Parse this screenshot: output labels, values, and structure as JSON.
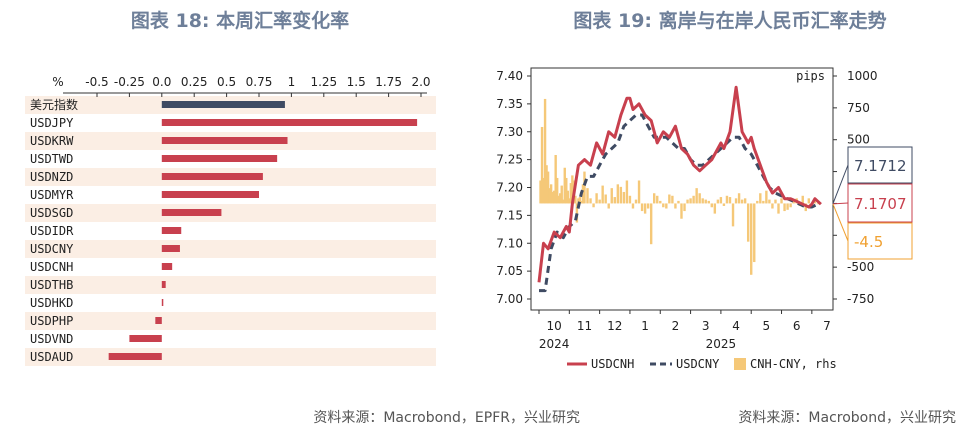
{
  "titles": {
    "left": "图表 18: 本周汇率变化率",
    "right": "图表 19: 离岸与在岸人民币汇率走势"
  },
  "sources": {
    "left": "资料来源：Macrobond，EPFR，兴业研究",
    "right": "资料来源：Macrobond，兴业研究"
  },
  "colors": {
    "bar_usd_index": "#3f4b63",
    "bar_red": "#c8404e",
    "row_shade": "#fbeee4",
    "cnh_line": "#c8404e",
    "cny_line": "#3f4b63",
    "spread_bar": "#f5c878",
    "box_blue": "#3f4b63",
    "box_red": "#c8404e",
    "box_orange": "#f0a030"
  },
  "chart_data": [
    {
      "type": "bar",
      "orientation": "horizontal",
      "unit_label": "%",
      "xlim": [
        -0.5,
        2.0
      ],
      "x_ticks": [
        "-0.5",
        "-0.25",
        "0.0",
        "0.25",
        "0.5",
        "0.75",
        "1",
        "1.25",
        "1.5",
        "1.75",
        "2.0"
      ],
      "categories": [
        "美元指数",
        "USDJPY",
        "USDKRW",
        "USDTWD",
        "USDNZD",
        "USDMYR",
        "USDSGD",
        "USDIDR",
        "USDCNY",
        "USDCNH",
        "USDTHB",
        "USDHKD",
        "USDPHP",
        "USDVND",
        "USDAUD"
      ],
      "values": [
        0.95,
        1.97,
        0.97,
        0.89,
        0.78,
        0.75,
        0.46,
        0.15,
        0.14,
        0.08,
        0.03,
        0.01,
        -0.05,
        -0.25,
        -0.41
      ]
    },
    {
      "type": "line",
      "x_tick_labels": [
        "10",
        "11",
        "12",
        "1",
        "2",
        "3",
        "4",
        "5",
        "6",
        "7"
      ],
      "year_labels": [
        "2024",
        "2025"
      ],
      "ylim": [
        7.0,
        7.4
      ],
      "y_ticks": [
        "7.40",
        "7.35",
        "7.30",
        "7.25",
        "7.20",
        "7.15",
        "7.10",
        "7.05",
        "7.00"
      ],
      "y2_label": "pips",
      "y2lim": [
        -750,
        1000
      ],
      "y2_ticks": [
        "1000",
        "750",
        "500",
        "250",
        "0",
        "-250",
        "-500",
        "-750"
      ],
      "legend": [
        "USDCNH",
        "USDCNY",
        "CNH-CNY, rhs"
      ],
      "value_boxes": [
        "7.1712",
        "7.1707",
        "-4.5"
      ],
      "series": [
        {
          "name": "USDCNH",
          "x": [
            0,
            0.15,
            0.3,
            0.5,
            0.7,
            0.9,
            1.0,
            1.1,
            1.3,
            1.5,
            1.7,
            1.9,
            2.1,
            2.3,
            2.5,
            2.7,
            2.9,
            3.0,
            3.1,
            3.3,
            3.5,
            3.7,
            3.9,
            4.1,
            4.3,
            4.5,
            4.7,
            4.9,
            5.1,
            5.3,
            5.5,
            5.7,
            5.9,
            6.0,
            6.1,
            6.3,
            6.5,
            6.7,
            6.9,
            7.0,
            7.1,
            7.3,
            7.5,
            7.7,
            7.9,
            8.0,
            8.1,
            8.3,
            8.5,
            8.7,
            8.9,
            9.0,
            9.1,
            9.3
          ],
          "y": [
            7.03,
            7.1,
            7.09,
            7.12,
            7.11,
            7.13,
            7.12,
            7.17,
            7.24,
            7.25,
            7.24,
            7.28,
            7.26,
            7.3,
            7.29,
            7.33,
            7.36,
            7.36,
            7.34,
            7.35,
            7.33,
            7.32,
            7.28,
            7.3,
            7.29,
            7.31,
            7.27,
            7.26,
            7.24,
            7.23,
            7.24,
            7.25,
            7.27,
            7.28,
            7.27,
            7.3,
            7.38,
            7.3,
            7.28,
            7.29,
            7.27,
            7.24,
            7.21,
            7.19,
            7.2,
            7.19,
            7.18,
            7.18,
            7.175,
            7.17,
            7.165,
            7.17,
            7.18,
            7.17
          ]
        },
        {
          "name": "USDCNY",
          "x": [
            0,
            0.2,
            0.4,
            0.6,
            0.8,
            1.0,
            1.2,
            1.4,
            1.6,
            1.8,
            2.0,
            2.2,
            2.4,
            2.6,
            2.8,
            3.0,
            3.2,
            3.4,
            3.6,
            3.8,
            4.0,
            4.2,
            4.4,
            4.6,
            4.8,
            5.0,
            5.2,
            5.4,
            5.6,
            5.8,
            6.0,
            6.2,
            6.4,
            6.6,
            6.8,
            7.0,
            7.2,
            7.4,
            7.6,
            7.8,
            8.0,
            8.2,
            8.4,
            8.6,
            8.8,
            9.0,
            9.2
          ],
          "y": [
            7.015,
            7.015,
            7.09,
            7.12,
            7.11,
            7.13,
            7.14,
            7.19,
            7.22,
            7.22,
            7.24,
            7.26,
            7.27,
            7.28,
            7.31,
            7.32,
            7.33,
            7.33,
            7.31,
            7.29,
            7.29,
            7.29,
            7.28,
            7.27,
            7.27,
            7.25,
            7.24,
            7.24,
            7.25,
            7.26,
            7.27,
            7.28,
            7.29,
            7.29,
            7.27,
            7.26,
            7.24,
            7.22,
            7.2,
            7.19,
            7.185,
            7.18,
            7.175,
            7.17,
            7.165,
            7.165,
            7.17
          ]
        },
        {
          "name": "CNH-CNY, rhs",
          "x": [
            0.05,
            0.1,
            0.15,
            0.2,
            0.25,
            0.3,
            0.35,
            0.4,
            0.45,
            0.5,
            0.55,
            0.6,
            0.65,
            0.7,
            0.75,
            0.8,
            0.85,
            0.9,
            0.95,
            1.0,
            1.05,
            1.1,
            1.15,
            1.2,
            1.25,
            1.3,
            1.35,
            1.4,
            1.45,
            1.5,
            1.6,
            1.7,
            1.8,
            1.9,
            2.0,
            2.1,
            2.2,
            2.3,
            2.4,
            2.5,
            2.6,
            2.7,
            2.8,
            2.9,
            3.0,
            3.1,
            3.2,
            3.3,
            3.4,
            3.5,
            3.6,
            3.7,
            3.8,
            3.9,
            4.0,
            4.1,
            4.2,
            4.3,
            4.4,
            4.5,
            4.6,
            4.7,
            4.8,
            4.9,
            5.0,
            5.1,
            5.2,
            5.3,
            5.4,
            5.5,
            5.6,
            5.7,
            5.8,
            5.9,
            6.0,
            6.1,
            6.2,
            6.3,
            6.4,
            6.5,
            6.6,
            6.7,
            6.8,
            6.9,
            7.0,
            7.1,
            7.2,
            7.3,
            7.4,
            7.5,
            7.6,
            7.7,
            7.8,
            7.9,
            8.0,
            8.1,
            8.2,
            8.3,
            8.4,
            8.5,
            8.6,
            8.7,
            8.8,
            8.9,
            9.0,
            9.1,
            9.2
          ],
          "y": [
            180,
            600,
            200,
            820,
            300,
            250,
            120,
            150,
            90,
            100,
            380,
            200,
            60,
            80,
            140,
            30,
            280,
            200,
            100,
            40,
            160,
            220,
            180,
            60,
            -150,
            40,
            50,
            20,
            150,
            250,
            120,
            40,
            -30,
            80,
            30,
            140,
            70,
            -40,
            120,
            50,
            150,
            130,
            90,
            180,
            60,
            -40,
            30,
            180,
            -60,
            -80,
            -40,
            -320,
            80,
            60,
            20,
            -30,
            -40,
            70,
            60,
            -40,
            20,
            -120,
            -60,
            30,
            40,
            60,
            120,
            80,
            40,
            30,
            20,
            -30,
            -80,
            30,
            50,
            -20,
            60,
            50,
            -180,
            40,
            80,
            30,
            40,
            -300,
            -560,
            -460,
            20,
            80,
            20,
            100,
            30,
            -40,
            30,
            -80,
            40,
            -60,
            -50,
            -30,
            20,
            40,
            -20,
            60,
            -60,
            40,
            -30,
            30,
            -4.5
          ]
        }
      ]
    }
  ]
}
